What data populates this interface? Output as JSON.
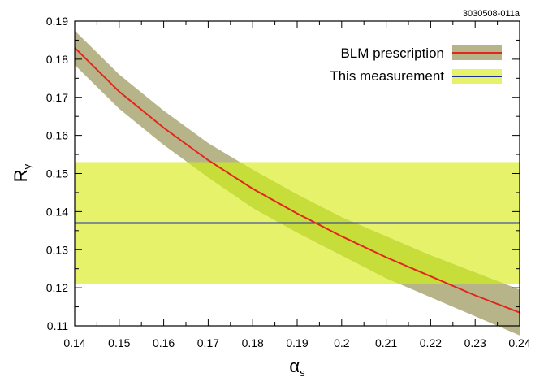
{
  "figure_id": "3030508-011a",
  "colors": {
    "blm_band": "#b8b48a",
    "blm_line": "#e2261c",
    "meas_band": "#e6f26a",
    "meas_line": "#1c2fa8",
    "overlap": "#c7dd3a"
  },
  "chart_data": {
    "type": "line",
    "xlabel_main": "α",
    "xlabel_sub": "s",
    "ylabel_main": "R",
    "ylabel_sub": "γ",
    "xlim": [
      0.14,
      0.24
    ],
    "ylim": [
      0.11,
      0.19
    ],
    "xticks": [
      "0.14",
      "0.15",
      "0.16",
      "0.17",
      "0.18",
      "0.19",
      "0.2",
      "0.21",
      "0.22",
      "0.23",
      "0.24"
    ],
    "yticks": [
      "0.11",
      "0.12",
      "0.13",
      "0.14",
      "0.15",
      "0.16",
      "0.17",
      "0.18",
      "0.19"
    ],
    "grid": false,
    "legend_position": "top-right",
    "series": [
      {
        "name": "BLM prescription",
        "x": [
          0.14,
          0.15,
          0.16,
          0.17,
          0.18,
          0.19,
          0.2,
          0.21,
          0.22,
          0.23,
          0.24
        ],
        "y": [
          0.183,
          0.1715,
          0.162,
          0.1535,
          0.146,
          0.1395,
          0.1335,
          0.128,
          0.123,
          0.118,
          0.1135
        ],
        "y_upper": [
          0.1875,
          0.176,
          0.1665,
          0.158,
          0.151,
          0.1445,
          0.1385,
          0.1335,
          0.1285,
          0.124,
          0.1195
        ],
        "y_lower": [
          0.1785,
          0.167,
          0.1575,
          0.149,
          0.141,
          0.1345,
          0.1285,
          0.1225,
          0.1175,
          0.1125,
          0.1075
        ]
      },
      {
        "name": "This measurement",
        "value": 0.137,
        "band": [
          0.121,
          0.153
        ]
      }
    ]
  }
}
